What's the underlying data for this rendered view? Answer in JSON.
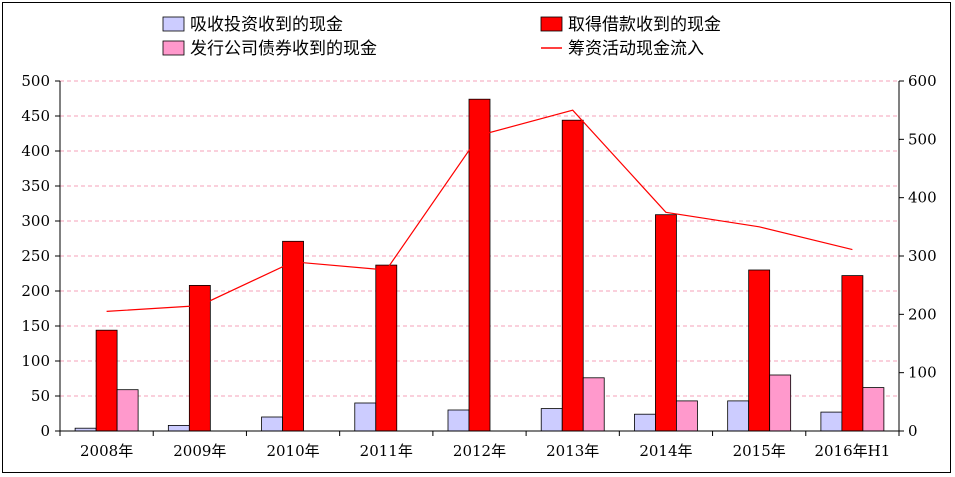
{
  "chart_data": {
    "type": "bar",
    "categories": [
      "2008年",
      "2009年",
      "2010年",
      "2011年",
      "2012年",
      "2013年",
      "2014年",
      "2015年",
      "2016年H1"
    ],
    "series": [
      {
        "name": "吸收投资收到的现金",
        "kind": "bar",
        "axis": "left",
        "color": "#ccccff",
        "values": [
          4,
          8,
          20,
          40,
          30,
          32,
          24,
          43,
          27
        ]
      },
      {
        "name": "取得借款收到的现金",
        "kind": "bar",
        "axis": "left",
        "color": "#ff0000",
        "values": [
          144,
          208,
          271,
          237,
          474,
          444,
          309,
          230,
          222
        ]
      },
      {
        "name": "发行公司债券收到的现金",
        "kind": "bar",
        "axis": "left",
        "color": "#ff99cc",
        "values": [
          59,
          0,
          0,
          0,
          0,
          76,
          43,
          80,
          62
        ]
      },
      {
        "name": "筹资活动现金流入",
        "kind": "line",
        "axis": "right",
        "color": "#ff0000",
        "values": [
          205,
          215,
          290,
          276,
          507,
          550,
          375,
          350,
          311
        ]
      }
    ],
    "y_left": {
      "min": 0,
      "max": 500,
      "ticks": [
        0,
        50,
        100,
        150,
        200,
        250,
        300,
        350,
        400,
        450,
        500
      ]
    },
    "y_right": {
      "min": 0,
      "max": 600,
      "ticks": [
        0,
        100,
        200,
        300,
        400,
        500,
        600
      ]
    },
    "grid": "horizontal dashed",
    "legend_position": "top"
  },
  "legend": [
    {
      "label": "吸收投资收到的现金",
      "swatch": "box",
      "color": "#ccccff"
    },
    {
      "label": "取得借款收到的现金",
      "swatch": "box",
      "color": "#ff0000"
    },
    {
      "label": "发行公司债券收到的现金",
      "swatch": "box",
      "color": "#ff99cc"
    },
    {
      "label": "筹资活动现金流入",
      "swatch": "line",
      "color": "#ff0000"
    }
  ]
}
